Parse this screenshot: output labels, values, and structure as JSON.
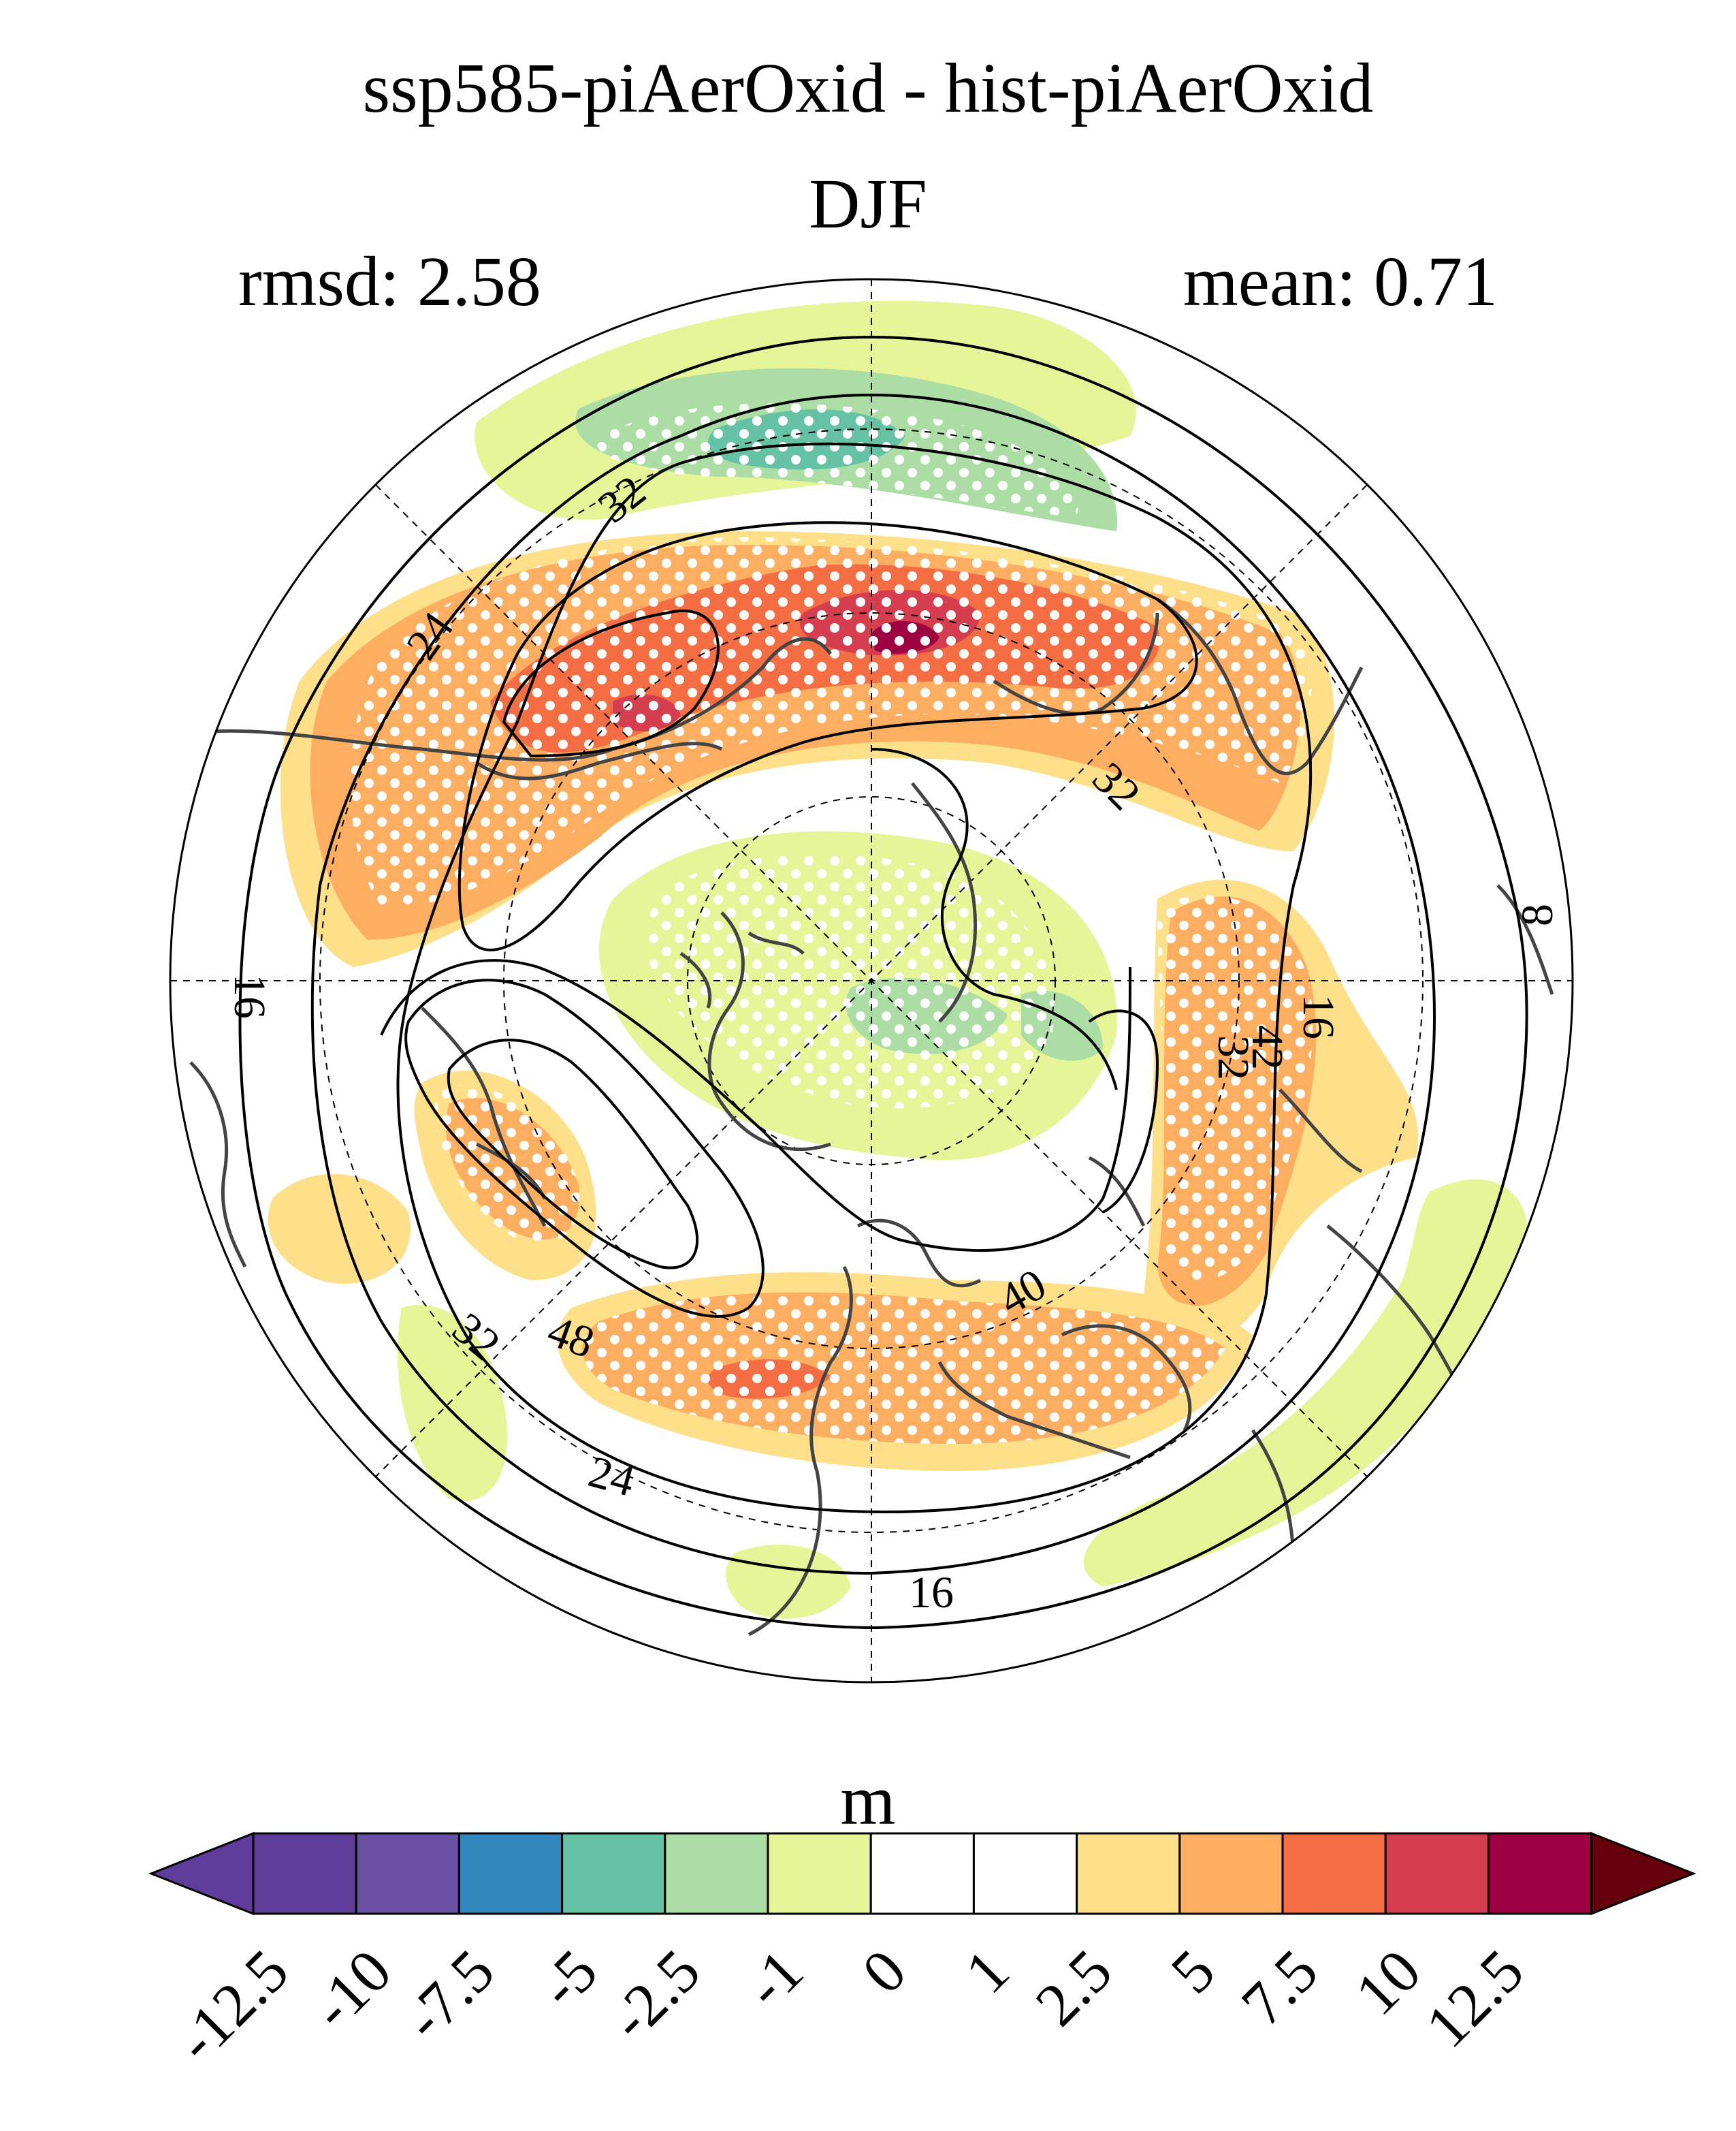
{
  "title": "ssp585-piAerOxid - hist-piAerOxid",
  "subtitle": "DJF",
  "rmsd_label": "rmsd: 2.58",
  "mean_label": "mean: 0.71",
  "map": {
    "projection": "north polar stereographic",
    "contour_labels": [
      "32",
      "24",
      "32",
      "16",
      "8",
      "16",
      "32",
      "42",
      "40",
      "48",
      "32",
      "24",
      "16"
    ],
    "stippling": "white dots",
    "graticule": "dashed"
  },
  "colorbar": {
    "units": "m",
    "tick_labels": [
      "-12.5",
      "-10",
      "-7.5",
      "-5",
      "-2.5",
      "-1",
      "0",
      "1",
      "2.5",
      "5",
      "7.5",
      "10",
      "12.5"
    ],
    "colors": [
      "#5e3c99",
      "#6a51a3",
      "#3288bd",
      "#66c2a5",
      "#abdda4",
      "#e6f598",
      "#ffffff",
      "#ffffff",
      "#fee08b",
      "#fdae61",
      "#f46d43",
      "#d53e4f",
      "#9e0142"
    ],
    "under_color": "#5e3c99",
    "over_color": "#67000d"
  }
}
